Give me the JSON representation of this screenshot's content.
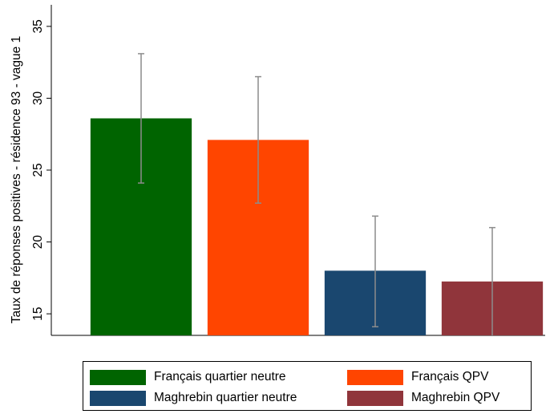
{
  "chart_data": {
    "type": "bar",
    "ylabel": "Taux de réponses positives - résidence 93 - vague 1",
    "ylim": [
      13.5,
      36.5
    ],
    "yticks": [
      15,
      20,
      25,
      30,
      35
    ],
    "grid": false,
    "legend_position": "bottom",
    "series": [
      {
        "name": "Français quartier neutre",
        "value": 28.6,
        "ci": [
          24.1,
          33.1
        ],
        "color": "#006400"
      },
      {
        "name": "Français QPV",
        "value": 27.1,
        "ci": [
          22.7,
          31.5
        ],
        "color": "#FF4500"
      },
      {
        "name": "Maghrebin quartier neutre",
        "value": 18.0,
        "ci": [
          14.1,
          21.8
        ],
        "color": "#1A476F"
      },
      {
        "name": "Maghrebin QPV",
        "value": 17.25,
        "ci": [
          13.5,
          21.0
        ],
        "color": "#90353B"
      }
    ]
  }
}
